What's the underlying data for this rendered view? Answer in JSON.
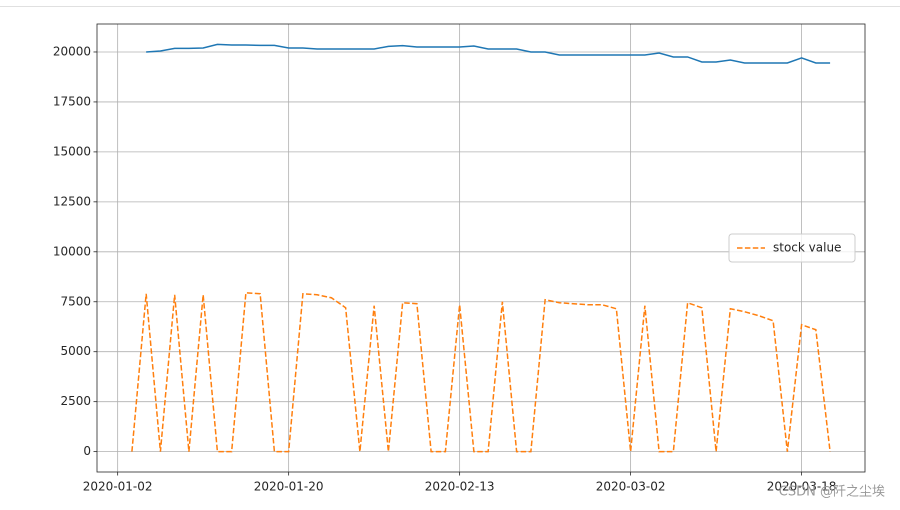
{
  "chart_data": {
    "type": "line",
    "categories": [
      "2020-01-02",
      null,
      null,
      null,
      null,
      null,
      null,
      null,
      null,
      null,
      null,
      null,
      "2020-01-20",
      null,
      null,
      null,
      null,
      null,
      null,
      null,
      null,
      null,
      null,
      null,
      "2020-02-13",
      null,
      null,
      null,
      null,
      null,
      null,
      null,
      null,
      null,
      null,
      null,
      "2020-03-02",
      null,
      null,
      null,
      null,
      null,
      null,
      null,
      null,
      null,
      null,
      null,
      "2020-03-18",
      null,
      null
    ],
    "series": [
      {
        "color": "#1f77b4",
        "dash": false,
        "values": [
          null,
          null,
          20000,
          20050,
          20180,
          20180,
          20200,
          20380,
          20350,
          20350,
          20330,
          20330,
          20200,
          20200,
          20150,
          20150,
          20150,
          20150,
          20150,
          20280,
          20320,
          20250,
          20250,
          20250,
          20250,
          20300,
          20150,
          20150,
          20150,
          20000,
          20000,
          19850,
          19850,
          19850,
          19850,
          19850,
          19850,
          19850,
          19950,
          19750,
          19750,
          19500,
          19500,
          19600,
          19450,
          19450,
          19450,
          19450,
          19700,
          19450,
          19450
        ]
      },
      {
        "name": "stock value",
        "color": "#ff7f0e",
        "dash": true,
        "values": [
          null,
          0,
          7900,
          0,
          7850,
          0,
          7850,
          0,
          0,
          7950,
          7900,
          0,
          0,
          7900,
          7850,
          7700,
          7200,
          0,
          7300,
          0,
          7450,
          7400,
          0,
          0,
          7350,
          0,
          0,
          7500,
          0,
          0,
          7600,
          7450,
          7400,
          7350,
          7350,
          7150,
          0,
          7300,
          0,
          0,
          7450,
          7200,
          0,
          7150,
          7000,
          6800,
          6550,
          0,
          6350,
          6100,
          0
        ]
      }
    ],
    "xlim": [
      -1.45,
      52.45
    ],
    "ylim": [
      -1020,
      21400
    ],
    "yticks": [
      0,
      2500,
      5000,
      7500,
      10000,
      12500,
      15000,
      17500,
      20000
    ],
    "grid": true,
    "legend": "center right",
    "watermark": "CSDN @阡之尘埃"
  }
}
